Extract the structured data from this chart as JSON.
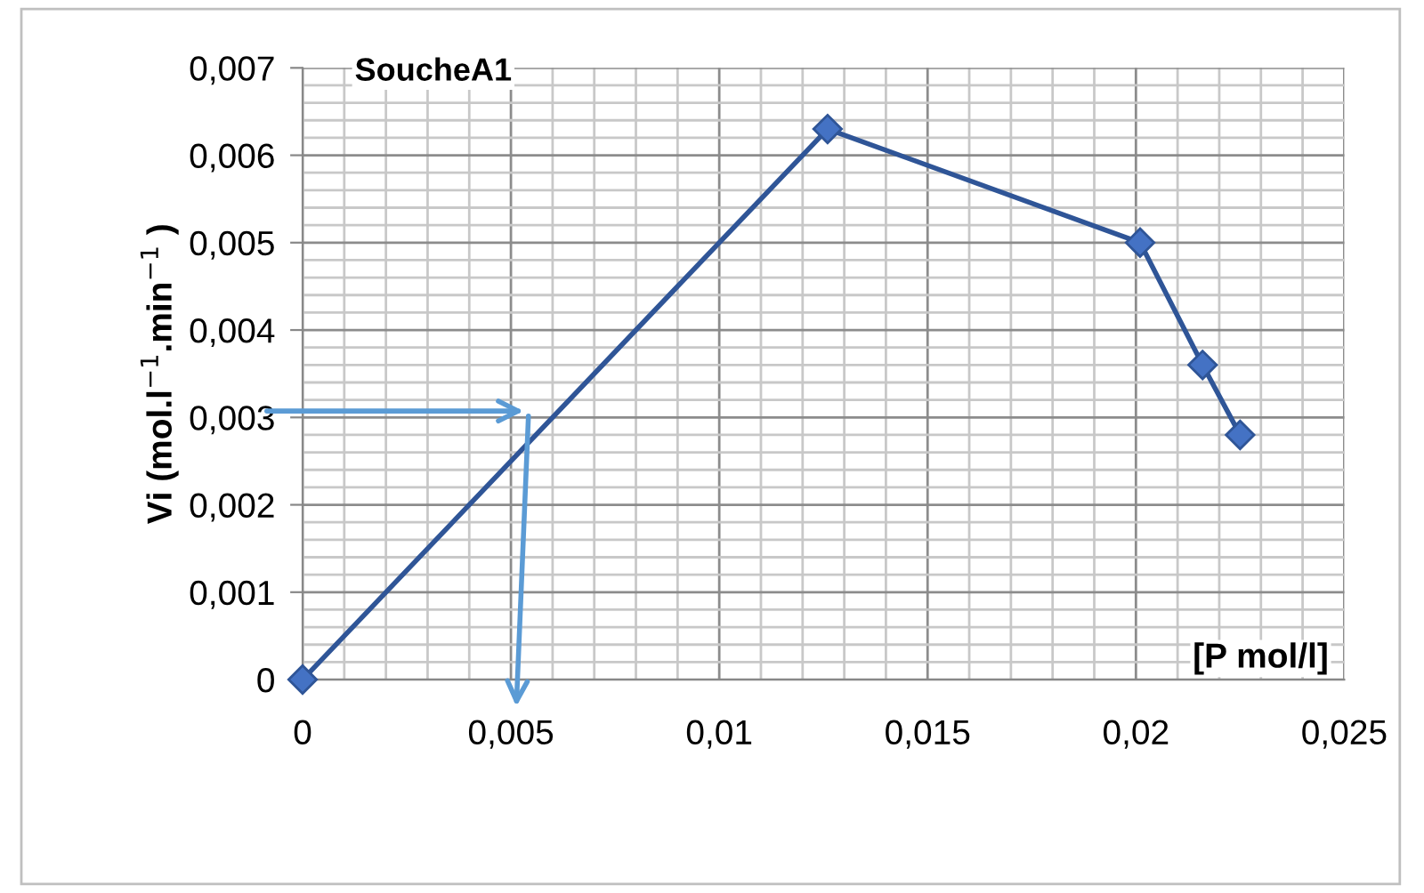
{
  "chart_data": {
    "type": "line",
    "title": "SoucheA1",
    "xlabel": "[P mol/l]",
    "ylabel": "Vi (mol.l$^{−1}$.min$^{−1}$ )",
    "x": [
      0,
      0.0126,
      0.0201,
      0.0216,
      0.0225
    ],
    "series": [
      {
        "color": "#2f5597",
        "values": [
          0,
          0.0063,
          0.005,
          0.0036,
          0.0028
        ]
      }
    ],
    "marker": "diamond",
    "line_style": "solid",
    "grid": true,
    "legend": false,
    "xlim": [
      0,
      0.025
    ],
    "ylim": [
      0,
      0.007
    ],
    "xticks": [
      0,
      {
        "value": 0.005,
        "label": "0,005"
      },
      {
        "value": 0.01,
        "label": "0,01"
      },
      {
        "value": 0.015,
        "label": "0,015"
      },
      {
        "value": 0.02,
        "label": "0,02"
      },
      {
        "value": 0.025,
        "label": "0,025"
      }
    ],
    "yticks": [
      0,
      {
        "value": 0.001,
        "label": "0,001"
      },
      {
        "value": 0.002,
        "label": "0,002"
      },
      {
        "value": 0.003,
        "label": "0,003"
      },
      {
        "value": 0.004,
        "label": "0,004"
      },
      {
        "value": 0.005,
        "label": "0,005"
      },
      {
        "value": 0.006,
        "label": "0,006"
      },
      {
        "value": 0.007,
        "label": "0,007"
      }
    ]
  }
}
